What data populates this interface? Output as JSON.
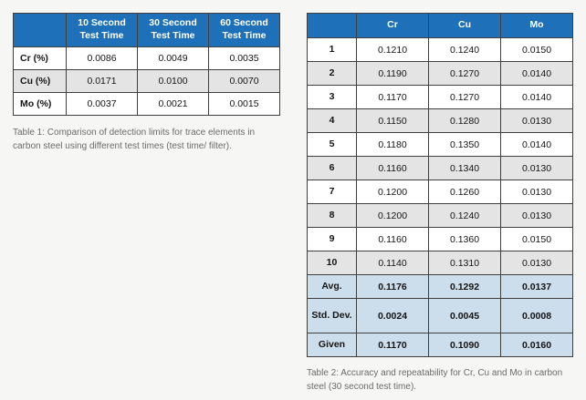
{
  "colors": {
    "header_blue": "#1e71b8",
    "row_alt_gray": "#e4e4e4",
    "summary_blue": "#ccddec",
    "page_background": "#f6f6f4"
  },
  "table1": {
    "col_headers": [
      "10 Second Test Time",
      "30 Second Test Time",
      "60 Second Test Time"
    ],
    "rows": [
      {
        "label": "Cr (%)",
        "values": [
          "0.0086",
          "0.0049",
          "0.0035"
        ]
      },
      {
        "label": "Cu (%)",
        "values": [
          "0.0171",
          "0.0100",
          "0.0070"
        ]
      },
      {
        "label": "Mo (%)",
        "values": [
          "0.0037",
          "0.0021",
          "0.0015"
        ]
      }
    ],
    "caption": "Table 1: Comparison of detection limits for trace elements in carbon steel using different test times (test time/ filter)."
  },
  "table2": {
    "col_headers": [
      "Cr",
      "Cu",
      "Mo"
    ],
    "rows": [
      {
        "label": "1",
        "values": [
          "0.1210",
          "0.1240",
          "0.0150"
        ]
      },
      {
        "label": "2",
        "values": [
          "0.1190",
          "0.1270",
          "0.0140"
        ]
      },
      {
        "label": "3",
        "values": [
          "0.1170",
          "0.1270",
          "0.0140"
        ]
      },
      {
        "label": "4",
        "values": [
          "0.1150",
          "0.1280",
          "0.0130"
        ]
      },
      {
        "label": "5",
        "values": [
          "0.1180",
          "0.1350",
          "0.0140"
        ]
      },
      {
        "label": "6",
        "values": [
          "0.1160",
          "0.1340",
          "0.0130"
        ]
      },
      {
        "label": "7",
        "values": [
          "0.1200",
          "0.1260",
          "0.0130"
        ]
      },
      {
        "label": "8",
        "values": [
          "0.1200",
          "0.1240",
          "0.0130"
        ]
      },
      {
        "label": "9",
        "values": [
          "0.1160",
          "0.1360",
          "0.0150"
        ]
      },
      {
        "label": "10",
        "values": [
          "0.1140",
          "0.1310",
          "0.0130"
        ]
      }
    ],
    "summary_rows": [
      {
        "label": "Avg.",
        "values": [
          "0.1176",
          "0.1292",
          "0.0137"
        ]
      },
      {
        "label": "Std. Dev.",
        "values": [
          "0.0024",
          "0.0045",
          "0.0008"
        ]
      },
      {
        "label": "Given",
        "values": [
          "0.1170",
          "0.1090",
          "0.0160"
        ]
      }
    ],
    "caption": "Table 2: Accuracy and repeatability for Cr, Cu and Mo in carbon steel (30 second test time)."
  }
}
